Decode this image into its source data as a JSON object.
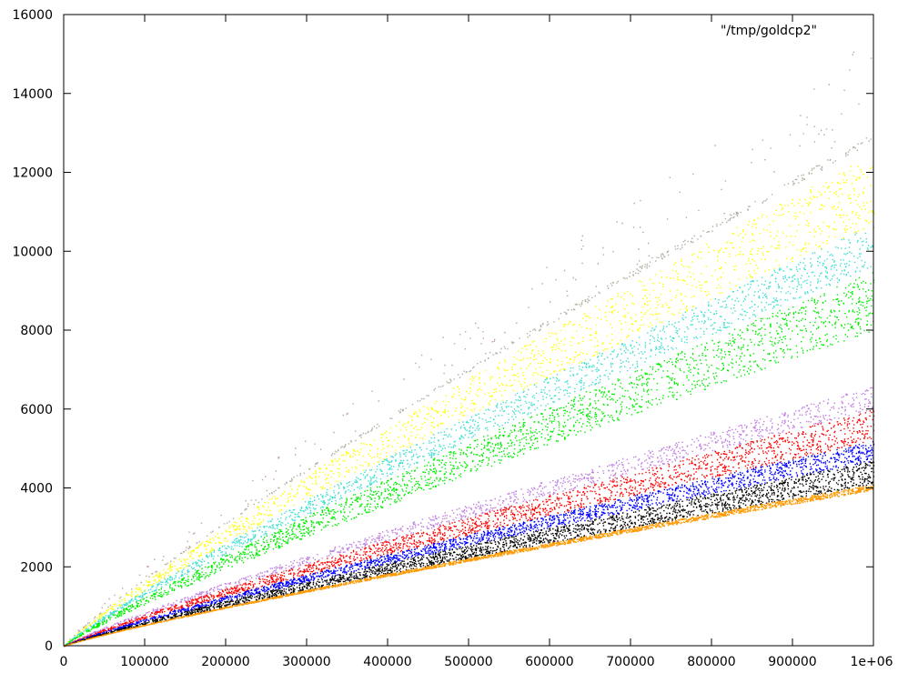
{
  "chart_data": {
    "type": "scatter",
    "title": "",
    "xlabel": "",
    "ylabel": "",
    "xlim": [
      0,
      1000000
    ],
    "ylim": [
      0,
      16000
    ],
    "grid": false,
    "legend_position": "top-right",
    "legend_entries": [
      "\"/tmp/goldcp2\""
    ],
    "x_ticks": [
      {
        "value": 0,
        "label": "0"
      },
      {
        "value": 100000,
        "label": "100000"
      },
      {
        "value": 200000,
        "label": "200000"
      },
      {
        "value": 300000,
        "label": "300000"
      },
      {
        "value": 400000,
        "label": "400000"
      },
      {
        "value": 500000,
        "label": "500000"
      },
      {
        "value": 600000,
        "label": "600000"
      },
      {
        "value": 700000,
        "label": "700000"
      },
      {
        "value": 800000,
        "label": "800000"
      },
      {
        "value": 900000,
        "label": "900000"
      },
      {
        "value": 1000000,
        "label": "1e+06"
      }
    ],
    "y_ticks": [
      {
        "value": 0,
        "label": "0"
      },
      {
        "value": 2000,
        "label": "2000"
      },
      {
        "value": 4000,
        "label": "4000"
      },
      {
        "value": 6000,
        "label": "6000"
      },
      {
        "value": 8000,
        "label": "8000"
      },
      {
        "value": 10000,
        "label": "10000"
      },
      {
        "value": 12000,
        "label": "12000"
      },
      {
        "value": 14000,
        "label": "14000"
      },
      {
        "value": 16000,
        "label": "16000"
      }
    ],
    "bands": [
      {
        "color": "#b0b0a0",
        "y_lower_at_xmax": 12800,
        "y_upper_at_xmax": 13000,
        "density": 0.15
      },
      {
        "color": "#c0a0a0",
        "y_lower_at_xmax": 13000,
        "y_upper_at_xmax": 15500,
        "density": 0.06
      },
      {
        "color": "#ffff00",
        "y_lower_at_xmax": 10700,
        "y_upper_at_xmax": 12500,
        "density": 0.55
      },
      {
        "color": "#40e0d0",
        "y_lower_at_xmax": 9600,
        "y_upper_at_xmax": 10700,
        "density": 0.6
      },
      {
        "color": "#00ee00",
        "y_lower_at_xmax": 8000,
        "y_upper_at_xmax": 9500,
        "density": 0.85
      },
      {
        "color": "#c080e0",
        "y_lower_at_xmax": 6000,
        "y_upper_at_xmax": 6600,
        "density": 0.45
      },
      {
        "color": "#ff0000",
        "y_lower_at_xmax": 5200,
        "y_upper_at_xmax": 6000,
        "density": 0.75
      },
      {
        "color": "#0000ff",
        "y_lower_at_xmax": 4700,
        "y_upper_at_xmax": 5200,
        "density": 0.8
      },
      {
        "color": "#000000",
        "y_lower_at_xmax": 4100,
        "y_upper_at_xmax": 4700,
        "density": 0.9
      },
      {
        "color": "#ff9900",
        "y_lower_at_xmax": 3950,
        "y_upper_at_xmax": 4100,
        "density": 0.9
      }
    ],
    "curve_exponent": 0.88
  }
}
